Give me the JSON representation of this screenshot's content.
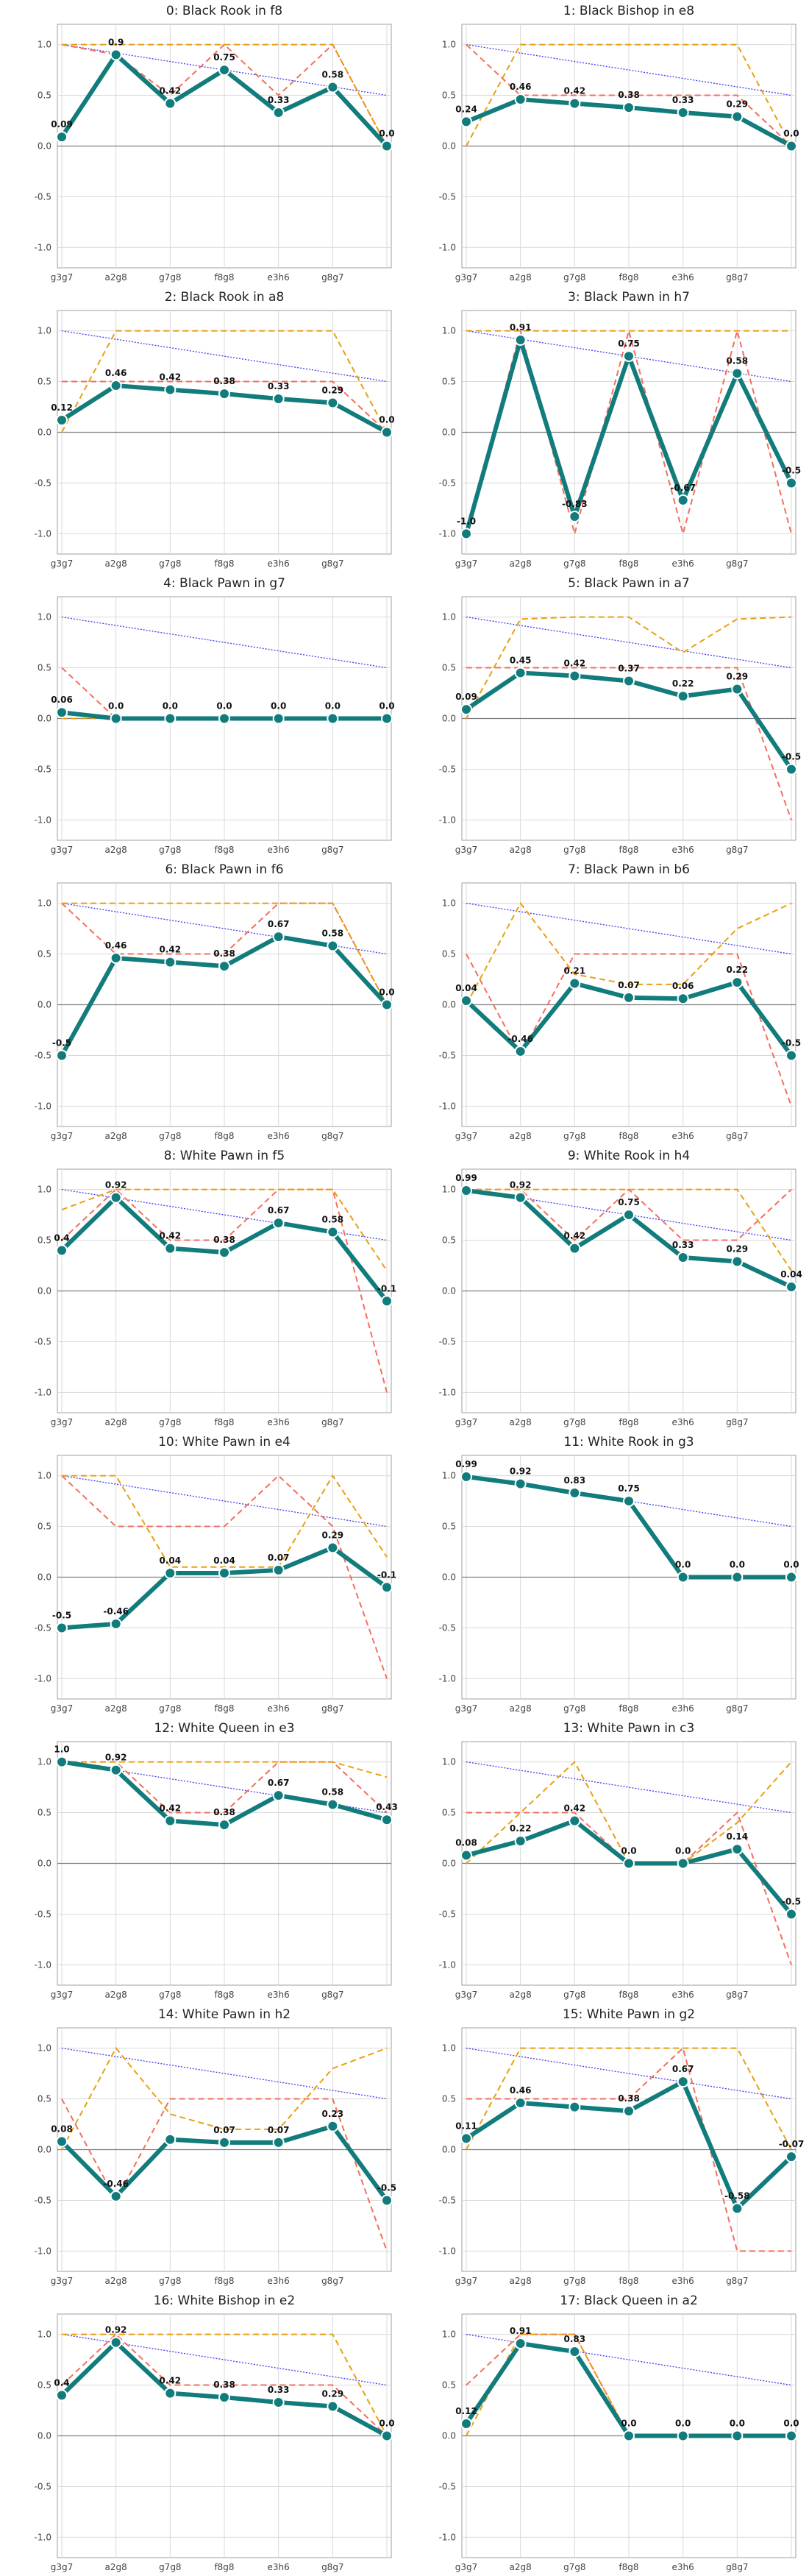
{
  "chart_data": [
    {
      "type": "line",
      "title": "0: Black Rook in f8",
      "categories": [
        "g3g7",
        "a2g8",
        "g7g8",
        "f8g8",
        "e3h6",
        "g8g7",
        ""
      ],
      "ylim": [
        -1.2,
        1.2
      ],
      "yticks": [
        1.0,
        0.5,
        0.0,
        -0.5,
        -1.0
      ],
      "grid": true,
      "series": [
        {
          "values": [
            0.09,
            0.9,
            0.42,
            0.75,
            0.33,
            0.58,
            0.0
          ],
          "labels": [
            "0.09",
            "0.9",
            "0.42",
            "0.75",
            "0.33",
            "0.58",
            "0.0"
          ]
        }
      ],
      "ref_blue": [
        1.0,
        0.5
      ],
      "ref_red": [
        1.0,
        0.9,
        0.5,
        1.0,
        0.5,
        1.0,
        0.0
      ],
      "ref_orange": [
        1.0,
        1.0,
        1.0,
        1.0,
        1.0,
        1.0,
        0.0
      ]
    },
    {
      "type": "line",
      "title": "1: Black Bishop in e8",
      "categories": [
        "g3g7",
        "a2g8",
        "g7g8",
        "f8g8",
        "e3h6",
        "g8g7",
        ""
      ],
      "ylim": [
        -1.2,
        1.2
      ],
      "yticks": [
        1.0,
        0.5,
        0.0,
        -0.5,
        -1.0
      ],
      "grid": true,
      "series": [
        {
          "values": [
            0.24,
            0.46,
            0.42,
            0.38,
            0.33,
            0.29,
            0.0
          ],
          "labels": [
            "0.24",
            "0.46",
            "0.42",
            "0.38",
            "0.33",
            "0.29",
            "0.0"
          ]
        }
      ],
      "ref_blue": [
        1.0,
        0.5
      ],
      "ref_red": [
        1.0,
        0.5,
        0.5,
        0.5,
        0.5,
        0.5,
        0.0
      ],
      "ref_orange": [
        0.0,
        1.0,
        1.0,
        1.0,
        1.0,
        1.0,
        0.0
      ]
    },
    {
      "type": "line",
      "title": "2: Black Rook in a8",
      "categories": [
        "g3g7",
        "a2g8",
        "g7g8",
        "f8g8",
        "e3h6",
        "g8g7",
        ""
      ],
      "ylim": [
        -1.2,
        1.2
      ],
      "yticks": [
        1.0,
        0.5,
        0.0,
        -0.5,
        -1.0
      ],
      "grid": true,
      "series": [
        {
          "values": [
            0.12,
            0.46,
            0.42,
            0.38,
            0.33,
            0.29,
            0.0
          ],
          "labels": [
            "0.12",
            "0.46",
            "0.42",
            "0.38",
            "0.33",
            "0.29",
            "0.0"
          ]
        }
      ],
      "ref_blue": [
        1.0,
        0.5
      ],
      "ref_red": [
        0.5,
        0.5,
        0.5,
        0.5,
        0.5,
        0.5,
        0.0
      ],
      "ref_orange": [
        0.0,
        1.0,
        1.0,
        1.0,
        1.0,
        1.0,
        0.0
      ]
    },
    {
      "type": "line",
      "title": "3: Black Pawn in h7",
      "categories": [
        "g3g7",
        "a2g8",
        "g7g8",
        "f8g8",
        "e3h6",
        "g8g7",
        ""
      ],
      "ylim": [
        -1.2,
        1.2
      ],
      "yticks": [
        1.0,
        0.5,
        0.0,
        -0.5,
        -1.0
      ],
      "grid": true,
      "series": [
        {
          "values": [
            -1.0,
            0.91,
            -0.83,
            0.75,
            -0.67,
            0.58,
            -0.5
          ],
          "labels": [
            "-1.0",
            "0.91",
            "-0.83",
            "0.75",
            "-0.67",
            "0.58",
            "-0.5"
          ]
        }
      ],
      "ref_blue": [
        1.0,
        0.5
      ],
      "ref_red": [
        -1.0,
        1.0,
        -1.0,
        1.0,
        -1.0,
        1.0,
        -1.0
      ],
      "ref_orange": [
        1.0,
        1.0,
        1.0,
        1.0,
        1.0,
        1.0,
        1.0
      ]
    },
    {
      "type": "line",
      "title": "4: Black Pawn in g7",
      "categories": [
        "g3g7",
        "a2g8",
        "g7g8",
        "f8g8",
        "e3h6",
        "g8g7",
        ""
      ],
      "ylim": [
        -1.2,
        1.2
      ],
      "yticks": [
        1.0,
        0.5,
        0.0,
        -0.5,
        -1.0
      ],
      "grid": true,
      "series": [
        {
          "values": [
            0.06,
            0.0,
            0.0,
            0.0,
            0.0,
            0.0,
            0.0
          ],
          "labels": [
            "0.06",
            "0.0",
            "0.0",
            "0.0",
            "0.0",
            "0.0",
            "0.0"
          ]
        }
      ],
      "ref_blue": [
        1.0,
        0.5
      ],
      "ref_red": [
        0.5,
        0.0,
        0.0,
        0.0,
        0.0,
        0.0,
        0.0
      ],
      "ref_orange": [
        0.0,
        0.0,
        0.0,
        0.0,
        0.0,
        0.0,
        0.0
      ]
    },
    {
      "type": "line",
      "title": "5: Black Pawn in a7",
      "categories": [
        "g3g7",
        "a2g8",
        "g7g8",
        "f8g8",
        "e3h6",
        "g8g7",
        ""
      ],
      "ylim": [
        -1.2,
        1.2
      ],
      "yticks": [
        1.0,
        0.5,
        0.0,
        -0.5,
        -1.0
      ],
      "grid": true,
      "series": [
        {
          "values": [
            0.09,
            0.45,
            0.42,
            0.37,
            0.22,
            0.29,
            -0.5
          ],
          "labels": [
            "0.09",
            "0.45",
            "0.42",
            "0.37",
            "0.22",
            "0.29",
            "-0.5"
          ]
        }
      ],
      "ref_blue": [
        1.0,
        0.5
      ],
      "ref_red": [
        0.5,
        0.5,
        0.5,
        0.5,
        0.5,
        0.5,
        -1.0
      ],
      "ref_orange": [
        0.0,
        0.98,
        1.0,
        1.0,
        0.65,
        0.98,
        1.0
      ]
    },
    {
      "type": "line",
      "title": "6: Black Pawn in f6",
      "categories": [
        "g3g7",
        "a2g8",
        "g7g8",
        "f8g8",
        "e3h6",
        "g8g7",
        ""
      ],
      "ylim": [
        -1.2,
        1.2
      ],
      "yticks": [
        1.0,
        0.5,
        0.0,
        -0.5,
        -1.0
      ],
      "grid": true,
      "series": [
        {
          "values": [
            -0.5,
            0.46,
            0.42,
            0.38,
            0.67,
            0.58,
            0.0
          ],
          "labels": [
            "-0.5",
            "0.46",
            "0.42",
            "0.38",
            "0.67",
            "0.58",
            "0.0"
          ]
        }
      ],
      "ref_blue": [
        1.0,
        0.5
      ],
      "ref_red": [
        1.0,
        0.5,
        0.5,
        0.5,
        1.0,
        1.0,
        0.0
      ],
      "ref_orange": [
        1.0,
        1.0,
        1.0,
        1.0,
        1.0,
        1.0,
        0.0
      ]
    },
    {
      "type": "line",
      "title": "7: Black Pawn in b6",
      "categories": [
        "g3g7",
        "a2g8",
        "g7g8",
        "f8g8",
        "e3h6",
        "g8g7",
        ""
      ],
      "ylim": [
        -1.2,
        1.2
      ],
      "yticks": [
        1.0,
        0.5,
        0.0,
        -0.5,
        -1.0
      ],
      "grid": true,
      "series": [
        {
          "values": [
            0.04,
            -0.46,
            0.21,
            0.07,
            0.06,
            0.22,
            -0.5
          ],
          "labels": [
            "0.04",
            "-0.46",
            "0.21",
            "0.07",
            "0.06",
            "0.22",
            "-0.5"
          ]
        }
      ],
      "ref_blue": [
        1.0,
        0.5
      ],
      "ref_red": [
        0.5,
        -0.5,
        0.5,
        0.5,
        0.5,
        0.5,
        -1.0
      ],
      "ref_orange": [
        0.0,
        1.0,
        0.3,
        0.2,
        0.2,
        0.75,
        1.0
      ]
    },
    {
      "type": "line",
      "title": "8: White Pawn in f5",
      "categories": [
        "g3g7",
        "a2g8",
        "g7g8",
        "f8g8",
        "e3h6",
        "g8g7",
        ""
      ],
      "ylim": [
        -1.2,
        1.2
      ],
      "yticks": [
        1.0,
        0.5,
        0.0,
        -0.5,
        -1.0
      ],
      "grid": true,
      "series": [
        {
          "values": [
            0.4,
            0.92,
            0.42,
            0.38,
            0.67,
            0.58,
            -0.1
          ],
          "labels": [
            "0.4",
            "0.92",
            "0.42",
            "0.38",
            "0.67",
            "0.58",
            "-0.1"
          ]
        }
      ],
      "ref_blue": [
        1.0,
        0.5
      ],
      "ref_red": [
        0.5,
        1.0,
        0.5,
        0.5,
        1.0,
        1.0,
        -1.0
      ],
      "ref_orange": [
        0.8,
        1.0,
        1.0,
        1.0,
        1.0,
        1.0,
        0.2
      ]
    },
    {
      "type": "line",
      "title": "9: White Rook in h4",
      "categories": [
        "g3g7",
        "a2g8",
        "g7g8",
        "f8g8",
        "e3h6",
        "g8g7",
        ""
      ],
      "ylim": [
        -1.2,
        1.2
      ],
      "yticks": [
        1.0,
        0.5,
        0.0,
        -0.5,
        -1.0
      ],
      "grid": true,
      "series": [
        {
          "values": [
            0.99,
            0.92,
            0.42,
            0.75,
            0.33,
            0.29,
            0.04
          ],
          "labels": [
            "0.99",
            "0.92",
            "0.42",
            "0.75",
            "0.33",
            "0.29",
            "0.04"
          ]
        }
      ],
      "ref_blue": [
        1.0,
        0.5
      ],
      "ref_red": [
        1.0,
        1.0,
        0.5,
        1.0,
        0.5,
        0.5,
        1.0
      ],
      "ref_orange": [
        1.0,
        1.0,
        1.0,
        1.0,
        1.0,
        1.0,
        0.2
      ]
    },
    {
      "type": "line",
      "title": "10: White Pawn in e4",
      "categories": [
        "g3g7",
        "a2g8",
        "g7g8",
        "f8g8",
        "e3h6",
        "g8g7",
        ""
      ],
      "ylim": [
        -1.2,
        1.2
      ],
      "yticks": [
        1.0,
        0.5,
        0.0,
        -0.5,
        -1.0
      ],
      "grid": true,
      "series": [
        {
          "values": [
            -0.5,
            -0.46,
            0.04,
            0.04,
            0.07,
            0.29,
            -0.1
          ],
          "labels": [
            "-0.5",
            "-0.46",
            "0.04",
            "0.04",
            "0.07",
            "0.29",
            "-0.1"
          ]
        }
      ],
      "ref_blue": [
        1.0,
        0.5
      ],
      "ref_red": [
        1.0,
        0.5,
        0.5,
        0.5,
        1.0,
        0.5,
        -1.0
      ],
      "ref_orange": [
        1.0,
        1.0,
        0.1,
        0.1,
        0.1,
        1.0,
        0.2
      ]
    },
    {
      "type": "line",
      "title": "11: White Rook in g3",
      "categories": [
        "g3g7",
        "a2g8",
        "g7g8",
        "f8g8",
        "e3h6",
        "g8g7",
        ""
      ],
      "ylim": [
        -1.2,
        1.2
      ],
      "yticks": [
        1.0,
        0.5,
        0.0,
        -0.5,
        -1.0
      ],
      "grid": true,
      "series": [
        {
          "values": [
            0.99,
            0.92,
            0.83,
            0.75,
            0.0,
            0.0,
            0.0
          ],
          "labels": [
            "0.99",
            "0.92",
            "0.83",
            "0.75",
            "0.0",
            "0.0",
            "0.0"
          ]
        }
      ],
      "ref_blue": [
        1.0,
        0.5
      ],
      "ref_red": [
        1.0,
        0.92,
        0.83,
        0.75,
        0.0,
        0.0,
        0.0
      ],
      "ref_orange": [
        1.0,
        0.92,
        0.83,
        0.75,
        0.0,
        0.0,
        0.0
      ]
    },
    {
      "type": "line",
      "title": "12: White Queen in e3",
      "categories": [
        "g3g7",
        "a2g8",
        "g7g8",
        "f8g8",
        "e3h6",
        "g8g7",
        ""
      ],
      "ylim": [
        -1.2,
        1.2
      ],
      "yticks": [
        1.0,
        0.5,
        0.0,
        -0.5,
        -1.0
      ],
      "grid": true,
      "series": [
        {
          "values": [
            1.0,
            0.92,
            0.42,
            0.38,
            0.67,
            0.58,
            0.43
          ],
          "labels": [
            "1.0",
            "0.92",
            "0.42",
            "0.38",
            "0.67",
            "0.58",
            "0.43"
          ]
        }
      ],
      "ref_blue": [
        1.0,
        0.5
      ],
      "ref_red": [
        1.0,
        1.0,
        0.5,
        0.5,
        1.0,
        1.0,
        0.5
      ],
      "ref_orange": [
        1.0,
        1.0,
        1.0,
        1.0,
        1.0,
        1.0,
        0.85
      ]
    },
    {
      "type": "line",
      "title": "13: White Pawn in c3",
      "categories": [
        "g3g7",
        "a2g8",
        "g7g8",
        "f8g8",
        "e3h6",
        "g8g7",
        ""
      ],
      "ylim": [
        -1.2,
        1.2
      ],
      "yticks": [
        1.0,
        0.5,
        0.0,
        -0.5,
        -1.0
      ],
      "grid": true,
      "series": [
        {
          "values": [
            0.08,
            0.22,
            0.42,
            0.0,
            0.0,
            0.14,
            -0.5
          ],
          "labels": [
            "0.08",
            "0.22",
            "0.42",
            "0.0",
            "0.0",
            "0.14",
            "-0.5"
          ]
        }
      ],
      "ref_blue": [
        1.0,
        0.5
      ],
      "ref_red": [
        0.5,
        0.5,
        0.5,
        0.0,
        0.0,
        0.5,
        -1.0
      ],
      "ref_orange": [
        0.0,
        0.5,
        1.0,
        0.0,
        0.0,
        0.4,
        1.0
      ]
    },
    {
      "type": "line",
      "title": "14: White Pawn in h2",
      "categories": [
        "g3g7",
        "a2g8",
        "g7g8",
        "f8g8",
        "e3h6",
        "g8g7",
        ""
      ],
      "ylim": [
        -1.2,
        1.2
      ],
      "yticks": [
        1.0,
        0.5,
        0.0,
        -0.5,
        -1.0
      ],
      "grid": true,
      "series": [
        {
          "values": [
            0.08,
            -0.46,
            0.1,
            0.07,
            0.07,
            0.23,
            -0.5
          ],
          "labels": [
            "0.08",
            "-0.46",
            "",
            "0.07",
            "0.07",
            "0.23",
            "-0.5"
          ]
        }
      ],
      "ref_blue": [
        1.0,
        0.5
      ],
      "ref_red": [
        0.5,
        -0.5,
        0.5,
        0.5,
        0.5,
        0.5,
        -1.0
      ],
      "ref_orange": [
        0.0,
        1.0,
        0.35,
        0.2,
        0.2,
        0.8,
        1.0
      ]
    },
    {
      "type": "line",
      "title": "15: White Pawn in g2",
      "categories": [
        "g3g7",
        "a2g8",
        "g7g8",
        "f8g8",
        "e3h6",
        "g8g7",
        ""
      ],
      "ylim": [
        -1.2,
        1.2
      ],
      "yticks": [
        1.0,
        0.5,
        0.0,
        -0.5,
        -1.0
      ],
      "grid": true,
      "series": [
        {
          "values": [
            0.11,
            0.46,
            0.42,
            0.38,
            0.67,
            -0.58,
            -0.07
          ],
          "labels": [
            "0.11",
            "0.46",
            "",
            "0.38",
            "0.67",
            "-0.58",
            "-0.07"
          ]
        }
      ],
      "ref_blue": [
        1.0,
        0.5
      ],
      "ref_red": [
        0.5,
        0.5,
        0.5,
        0.5,
        1.0,
        -1.0,
        -1.0
      ],
      "ref_orange": [
        0.0,
        1.0,
        1.0,
        1.0,
        1.0,
        1.0,
        0.0
      ]
    },
    {
      "type": "line",
      "title": "16: White Bishop in e2",
      "categories": [
        "g3g7",
        "a2g8",
        "g7g8",
        "f8g8",
        "e3h6",
        "g8g7",
        ""
      ],
      "ylim": [
        -1.2,
        1.2
      ],
      "yticks": [
        1.0,
        0.5,
        0.0,
        -0.5,
        -1.0
      ],
      "grid": true,
      "series": [
        {
          "values": [
            0.4,
            0.92,
            0.42,
            0.38,
            0.33,
            0.29,
            0.0
          ],
          "labels": [
            "0.4",
            "0.92",
            "0.42",
            "0.38",
            "0.33",
            "0.29",
            "0.0"
          ]
        }
      ],
      "ref_blue": [
        1.0,
        0.5
      ],
      "ref_red": [
        0.5,
        1.0,
        0.5,
        0.5,
        0.5,
        0.5,
        0.0
      ],
      "ref_orange": [
        1.0,
        1.0,
        1.0,
        1.0,
        1.0,
        1.0,
        0.0
      ]
    },
    {
      "type": "line",
      "title": "17: Black Queen in a2",
      "categories": [
        "g3g7",
        "a2g8",
        "g7g8",
        "f8g8",
        "e3h6",
        "g8g7",
        ""
      ],
      "ylim": [
        -1.2,
        1.2
      ],
      "yticks": [
        1.0,
        0.5,
        0.0,
        -0.5,
        -1.0
      ],
      "grid": true,
      "series": [
        {
          "values": [
            0.12,
            0.91,
            0.83,
            0.0,
            0.0,
            0.0,
            0.0
          ],
          "labels": [
            "0.12",
            "0.91",
            "0.83",
            "0.0",
            "0.0",
            "0.0",
            "0.0"
          ]
        }
      ],
      "ref_blue": [
        1.0,
        0.5
      ],
      "ref_red": [
        0.5,
        1.0,
        1.0,
        0.0,
        0.0,
        0.0,
        0.0
      ],
      "ref_orange": [
        0.0,
        1.0,
        1.0,
        0.0,
        0.0,
        0.0,
        0.0
      ]
    }
  ],
  "colors": {
    "main": "#127c7c",
    "red": "#f36f5e",
    "orange": "#e9a011",
    "blue": "#3c3cf0",
    "zero": "#7f7f7f",
    "grid": "#d9d9d9"
  }
}
